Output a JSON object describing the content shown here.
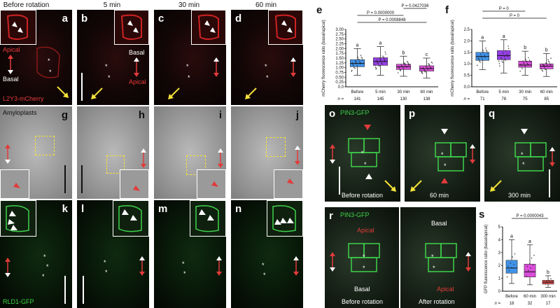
{
  "headers": {
    "before": "Before rotation",
    "t5": "5 min",
    "t30": "30 min",
    "t60": "60 min"
  },
  "panel_letters": {
    "a": "a",
    "b": "b",
    "c": "c",
    "d": "d",
    "e": "e",
    "f": "f",
    "g": "g",
    "h": "h",
    "i": "i",
    "j": "j",
    "k": "k",
    "l": "l",
    "m": "m",
    "n": "n",
    "o": "o",
    "p": "p",
    "q": "q",
    "r": "r",
    "s": "s"
  },
  "annotations": {
    "apical": "Apical",
    "basal": "Basal",
    "l2y3": "L2Y3-mCherry",
    "amyloplasts": "Amyloplasts",
    "rld1": "RLD1-GFP",
    "pin3": "PIN3-GFP",
    "before_rotation": "Before rotation",
    "after_rotation": "After rotation",
    "min60": "60 min",
    "min300": "300 min",
    "star": "*"
  },
  "colors": {
    "red": "#e23b3b",
    "green": "#3fd24a",
    "yellow": "#f5e23a",
    "magenta": "#d63ad6",
    "purple": "#8a2be2"
  },
  "chart_data": [
    {
      "id": "e",
      "type": "box",
      "ylabel": "mCherry fluorescence ratio (basal/apical)",
      "categories": [
        "Before",
        "5 min",
        "30 min",
        "60 min"
      ],
      "n_label": "n =",
      "n": [
        "141",
        "145",
        "130",
        "138"
      ],
      "letters": [
        "a",
        "a",
        "b",
        "c"
      ],
      "ylim": [
        0.0,
        3.0
      ],
      "yticks": [
        "0.0",
        "0.25",
        "0.50",
        "0.75",
        "1.00",
        "1.25",
        "1.50",
        "1.75",
        "2.00",
        "2.25",
        "2.50",
        "2.75",
        "3.00"
      ],
      "boxes": [
        {
          "q1": 1.05,
          "median": 1.22,
          "q3": 1.42,
          "low": 0.6,
          "high": 2.0,
          "color": "#2b86e6"
        },
        {
          "q1": 1.12,
          "median": 1.32,
          "q3": 1.52,
          "low": 0.6,
          "high": 2.1,
          "color": "#8a2be2"
        },
        {
          "q1": 0.9,
          "median": 1.05,
          "q3": 1.18,
          "low": 0.55,
          "high": 1.6,
          "color": "#d63ad6"
        },
        {
          "q1": 0.82,
          "median": 0.95,
          "q3": 1.1,
          "low": 0.45,
          "high": 1.5,
          "color": "#d63ad6"
        }
      ],
      "pvalues": [
        {
          "text": "P = 0.0427036",
          "from": 3,
          "to": 4
        },
        {
          "text": "P = 0.0000000",
          "from": 1,
          "to": 3
        },
        {
          "text": "P = 0.0008848",
          "from": 1,
          "to": 4
        }
      ]
    },
    {
      "id": "f",
      "type": "box",
      "ylabel": "mCherry fluorescence ratio (basal/apical)",
      "categories": [
        "Before",
        "5 min",
        "30 min",
        "60 min"
      ],
      "n_label": "n =",
      "n": [
        "71",
        "78",
        "75",
        "85"
      ],
      "letters": [
        "a",
        "a",
        "b",
        "b"
      ],
      "ylim": [
        0.0,
        2.5
      ],
      "yticks": [
        "0.0",
        "0.5",
        "1.0",
        "1.5",
        "2.0",
        "2.5"
      ],
      "boxes": [
        {
          "q1": 1.15,
          "median": 1.32,
          "q3": 1.5,
          "low": 0.75,
          "high": 2.0,
          "color": "#2b86e6"
        },
        {
          "q1": 1.18,
          "median": 1.36,
          "q3": 1.58,
          "low": 0.6,
          "high": 2.05,
          "color": "#8a2be2"
        },
        {
          "q1": 0.85,
          "median": 0.95,
          "q3": 1.12,
          "low": 0.5,
          "high": 1.55,
          "color": "#d63ad6"
        },
        {
          "q1": 0.78,
          "median": 0.9,
          "q3": 1.0,
          "low": 0.45,
          "high": 1.45,
          "color": "#d63ad6"
        }
      ],
      "pvalues": [
        {
          "text": "P = 0",
          "from": 1,
          "to": 3
        },
        {
          "text": "P = 0",
          "from": 1,
          "to": 4
        }
      ]
    },
    {
      "id": "s",
      "type": "box",
      "ylabel": "GFP fluorescence ratio (basal/apical)",
      "categories": [
        "Before",
        "60 min",
        "300 min"
      ],
      "n_label": "n =",
      "n": [
        "18",
        "32",
        "17"
      ],
      "letters": [
        "a",
        "a",
        "b"
      ],
      "ylim": [
        0.0,
        5.0
      ],
      "yticks": [
        "0",
        "1",
        "2",
        "3",
        "4",
        "5"
      ],
      "boxes": [
        {
          "q1": 1.4,
          "median": 1.8,
          "q3": 2.4,
          "low": 0.6,
          "high": 4.0,
          "color": "#2b86e6"
        },
        {
          "q1": 1.1,
          "median": 1.5,
          "q3": 2.1,
          "low": 0.5,
          "high": 3.6,
          "color": "#d63ad6"
        },
        {
          "q1": 0.55,
          "median": 0.7,
          "q3": 0.85,
          "low": 0.3,
          "high": 1.2,
          "color": "#e23b3b"
        }
      ],
      "pvalues": [
        {
          "text": "P = 0.0000043",
          "from": 1,
          "to": 3
        }
      ]
    }
  ]
}
